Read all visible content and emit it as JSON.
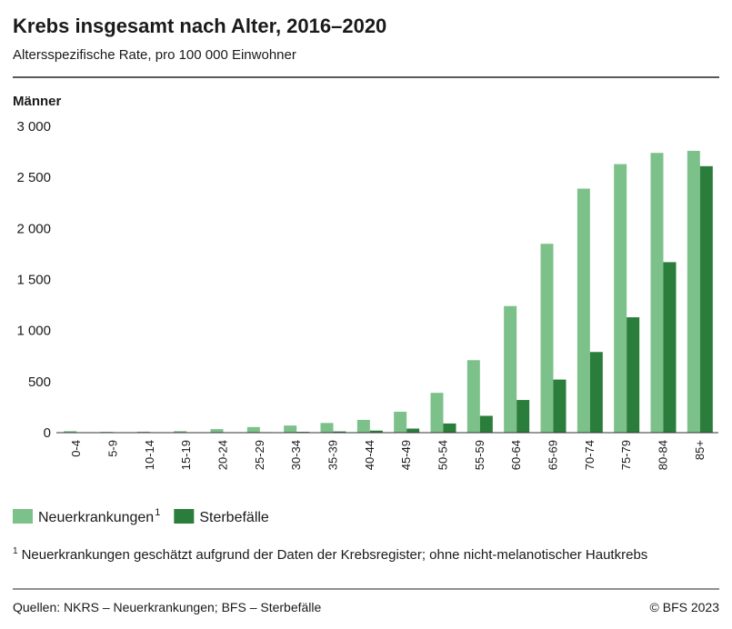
{
  "chart_data": {
    "type": "bar",
    "title": "Krebs insgesamt nach Alter, 2016–2020",
    "subtitle": "Altersspezifische Rate, pro 100 000 Einwohner",
    "panel_label": "Männer",
    "categories": [
      "0-4",
      "5-9",
      "10-14",
      "15-19",
      "20-24",
      "25-29",
      "30-34",
      "35-39",
      "40-44",
      "45-49",
      "50-54",
      "55-59",
      "60-64",
      "65-69",
      "70-74",
      "75-79",
      "80-84",
      "85+"
    ],
    "series": [
      {
        "name": "Neuerkrankungen",
        "footnote_marker": "1",
        "color": "#7dc18a",
        "values": [
          15,
          8,
          10,
          15,
          35,
          55,
          70,
          95,
          125,
          205,
          390,
          710,
          1240,
          1850,
          2390,
          2630,
          2740,
          2760
        ]
      },
      {
        "name": "Sterbefälle",
        "color": "#2b7d3c",
        "values": [
          2,
          1,
          1,
          2,
          3,
          5,
          8,
          12,
          20,
          40,
          90,
          165,
          320,
          520,
          790,
          1130,
          1670,
          2610
        ]
      }
    ],
    "ylim": [
      0,
      3000
    ],
    "yticks": [
      0,
      500,
      {
        "value": 1000,
        "label": "1 000"
      },
      {
        "value": 1500,
        "label": "1 500"
      },
      {
        "value": 2000,
        "label": "2 000"
      },
      {
        "value": 2500,
        "label": "2 500"
      },
      {
        "value": 3000,
        "label": "3 000"
      }
    ],
    "grid": false,
    "footnote": {
      "marker": "1",
      "text": "Neuerkrankungen geschätzt aufgrund der Daten der Krebsregister; ohne nicht-melanotischer Hautkrebs"
    },
    "source": "Quellen: NKRS – Neuerkrankungen; BFS – Sterbefälle",
    "copyright": "© BFS 2023"
  }
}
